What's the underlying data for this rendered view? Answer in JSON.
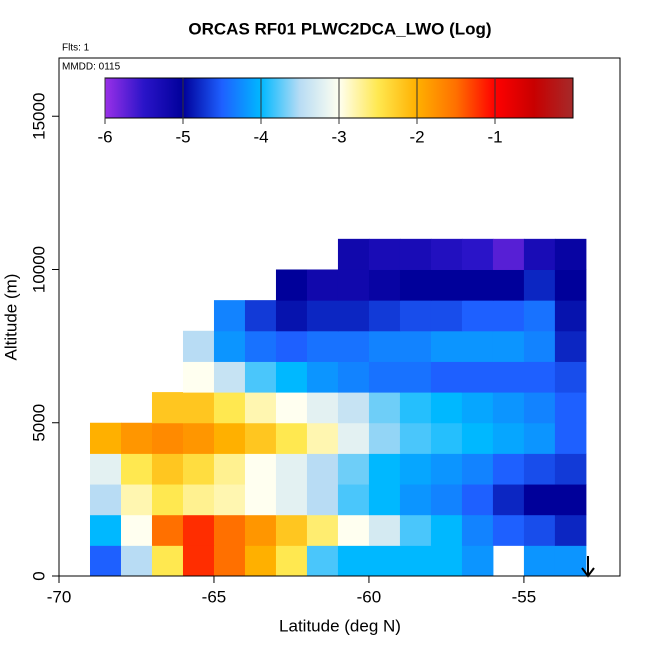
{
  "chart_data": {
    "type": "heatmap",
    "title": "ORCAS RF01 PLWC2DCA_LWO (Log)",
    "annotations": [
      "Flts: 1",
      "MMDD: 0115"
    ],
    "xlabel": "Latitude (deg N)",
    "ylabel": "Altitude (m)",
    "xlim": [
      -70,
      -51.9
    ],
    "xticks": [
      -70,
      -65,
      -60,
      -55
    ],
    "ylim": [
      0,
      16900
    ],
    "yticks": [
      0,
      5000,
      10000,
      15000
    ],
    "x": [
      -68.5,
      -67.5,
      -66.5,
      -65.5,
      -64.5,
      -63.5,
      -62.5,
      -61.5,
      -60.5,
      -59.5,
      -58.5,
      -57.5,
      -56.5,
      -55.5,
      -54.5,
      -53.5
    ],
    "y": [
      500,
      1500,
      2500,
      3500,
      4500,
      5500,
      6500,
      7500,
      8500,
      9500,
      10500
    ],
    "z": [
      [
        -4.5,
        -3.5,
        -2.5,
        -1.2,
        -1.5,
        -2,
        -2.5,
        -3.8,
        -4,
        -4,
        -4,
        -4,
        -4.2,
        null,
        -4.2,
        -4.2
      ],
      [
        -4,
        -3,
        -1.5,
        -1.2,
        -1.5,
        -1.8,
        -2.2,
        -2.6,
        -3,
        -3.3,
        -3.8,
        -4,
        -4.3,
        -4.5,
        -4.6,
        -4.8
      ],
      [
        -3.5,
        -2.8,
        -2.5,
        -2.7,
        -2.8,
        -3,
        -3.2,
        -3.5,
        -3.8,
        -4,
        -4.2,
        -4.3,
        -4.5,
        -4.8,
        -5,
        -5
      ],
      [
        -3.2,
        -2.5,
        -2.2,
        -2.4,
        -2.7,
        -3,
        -3.2,
        -3.5,
        -3.7,
        -4,
        -4.1,
        -4.2,
        -4.3,
        -4.5,
        -4.6,
        -4.7
      ],
      [
        -2,
        -1.8,
        -1.7,
        -1.8,
        -2,
        -2.2,
        -2.5,
        -2.8,
        -3.2,
        -3.6,
        -3.8,
        -3.9,
        -4,
        -4.1,
        -4.2,
        -4.5
      ],
      [
        null,
        null,
        -2.2,
        -2.2,
        -2.5,
        -2.8,
        -3,
        -3.2,
        -3.4,
        -3.7,
        -3.9,
        -4,
        -4.1,
        -4.2,
        -4.3,
        -4.5
      ],
      [
        null,
        null,
        null,
        -3,
        -3.4,
        -3.8,
        -4,
        -4.2,
        -4.3,
        -4.4,
        -4.4,
        -4.5,
        -4.5,
        -4.5,
        -4.5,
        -4.6
      ],
      [
        null,
        null,
        null,
        -3.5,
        -4.2,
        -4.4,
        -4.5,
        -4.4,
        -4.4,
        -4.3,
        -4.3,
        -4.2,
        -4.2,
        -4.2,
        -4.3,
        -4.8
      ],
      [
        null,
        null,
        null,
        null,
        -4.3,
        -4.7,
        -4.9,
        -4.8,
        -4.8,
        -4.7,
        -4.6,
        -4.6,
        -4.5,
        -4.5,
        -4.4,
        -4.9
      ],
      [
        null,
        null,
        null,
        null,
        null,
        null,
        -5,
        -5.2,
        -5.2,
        -5.1,
        -5,
        -5,
        -5,
        -5,
        -4.8,
        -5
      ],
      [
        null,
        null,
        null,
        null,
        null,
        null,
        null,
        null,
        -5.2,
        -5.3,
        -5.3,
        -5.4,
        -5.5,
        -5.7,
        -5.3,
        -5.1
      ]
    ],
    "colorbar": {
      "lim": [
        -6,
        0
      ],
      "ticks": [
        -6,
        -5,
        -4,
        -3,
        -2,
        -1
      ],
      "colors": [
        "#9a30e8",
        "#2a14c8",
        "#00009a",
        "#1e60ff",
        "#00b8ff",
        "#b8dcf4",
        "#fffff0",
        "#ffe850",
        "#ffb000",
        "#ff7000",
        "#ff0000",
        "#c80000",
        "#a52a2a"
      ]
    }
  }
}
